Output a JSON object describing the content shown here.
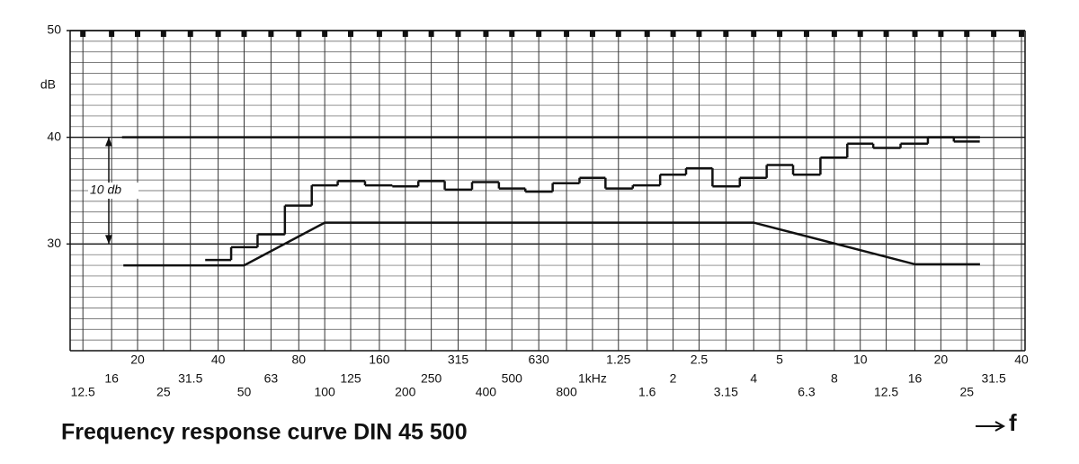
{
  "chart_data": {
    "type": "line",
    "title": "Frequency response curve DIN 45 500",
    "x_label": "f",
    "y_label": "dB",
    "xscale": "log",
    "xlim": [
      11.2,
      41250
    ],
    "ylim": [
      20,
      50
    ],
    "yticks": [
      30,
      40,
      50
    ],
    "yminor": 1,
    "grid": true,
    "xticks": [
      12.5,
      16,
      20,
      25,
      31.5,
      40,
      50,
      63,
      80,
      100,
      125,
      160,
      200,
      250,
      315,
      400,
      500,
      630,
      800,
      {
        "value": 1000,
        "label": "1kHz"
      },
      {
        "value": 1250,
        "label": "1.25"
      },
      {
        "value": 1600,
        "label": "1.6"
      },
      {
        "value": 2000,
        "label": "2"
      },
      {
        "value": 2500,
        "label": "2.5"
      },
      {
        "value": 3150,
        "label": "3.15"
      },
      {
        "value": 4000,
        "label": "4"
      },
      {
        "value": 5000,
        "label": "5"
      },
      {
        "value": 6300,
        "label": "6.3"
      },
      {
        "value": 8000,
        "label": "8"
      },
      {
        "value": 10000,
        "label": "10"
      },
      {
        "value": 12500,
        "label": "12.5"
      },
      {
        "value": 16000,
        "label": "16"
      },
      {
        "value": 20000,
        "label": "20"
      },
      {
        "value": 25000,
        "label": "25"
      },
      {
        "value": 31500,
        "label": "31.5"
      },
      {
        "value": 40000,
        "label": "40"
      }
    ],
    "series": [
      {
        "color": "#111111",
        "drawstyle": "steps-mid",
        "x": [
          40,
          50,
          63,
          80,
          100,
          125,
          160,
          200,
          250,
          315,
          400,
          500,
          630,
          800,
          1000,
          1250,
          1600,
          2000,
          2500,
          3150,
          4000,
          5000,
          6300,
          8000,
          10000,
          12500,
          16000,
          20000,
          25000
        ],
        "values": [
          28.5,
          29.7,
          30.9,
          33.6,
          35.5,
          35.9,
          35.5,
          35.4,
          35.9,
          35.1,
          35.8,
          35.2,
          34.9,
          35.7,
          36.2,
          35.2,
          35.5,
          36.5,
          37.1,
          35.4,
          36.2,
          37.4,
          36.5,
          38.1,
          39.4,
          39.0,
          39.4,
          40.0,
          39.6
        ]
      },
      {
        "color": "#111111",
        "drawstyle": "default",
        "x": [
          17.7,
          50,
          100,
          4000,
          16000,
          28000
        ],
        "values": [
          28,
          28,
          32,
          32,
          28.1,
          28.1
        ]
      },
      {
        "color": "#111111",
        "drawstyle": "default",
        "x": [
          17.5,
          28000
        ],
        "values": [
          40,
          40
        ]
      }
    ],
    "annotation": {
      "text": "10 db",
      "from": 30,
      "to": 40
    }
  }
}
